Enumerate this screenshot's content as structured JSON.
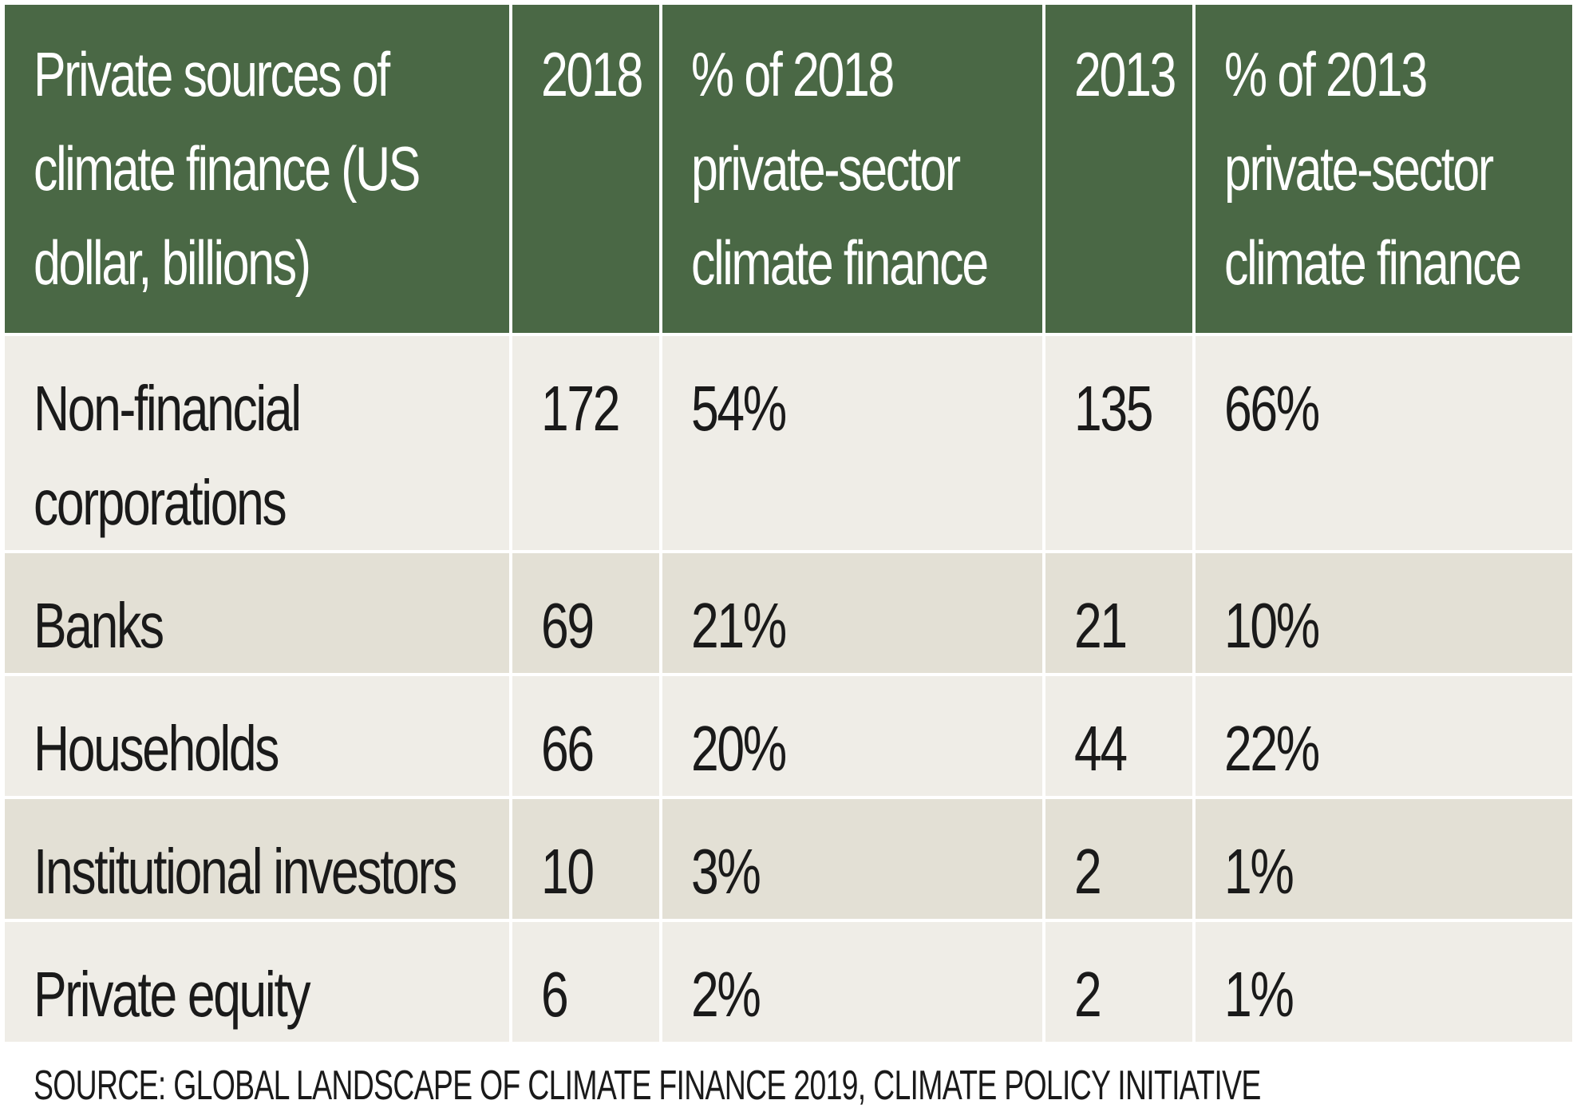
{
  "chart_data": {
    "type": "table",
    "columns": [
      "Private sources of climate finance (US dollar, billions)",
      "2018",
      "% of 2018 private-sector climate finance",
      "2013",
      "% of 2013 private-sector climate finance"
    ],
    "rows": [
      [
        "Non-financial corporations",
        "172",
        "54%",
        "135",
        "66%"
      ],
      [
        "Banks",
        "69",
        "21%",
        "21",
        "10%"
      ],
      [
        "Households",
        "66",
        "20%",
        "44",
        "22%"
      ],
      [
        "Institutional investors",
        "10",
        "3%",
        "2",
        "1%"
      ],
      [
        "Private equity",
        "6",
        "2%",
        "2",
        "1%"
      ]
    ],
    "source": "SOURCE: GLOBAL LANDSCAPE OF CLIMATE FINANCE 2019, CLIMATE POLICY INITIATIVE"
  },
  "colors": {
    "header_bg": "#4a6845",
    "header_text": "#ffffff",
    "row_light": "#efede7",
    "row_dark": "#e3e0d5"
  }
}
